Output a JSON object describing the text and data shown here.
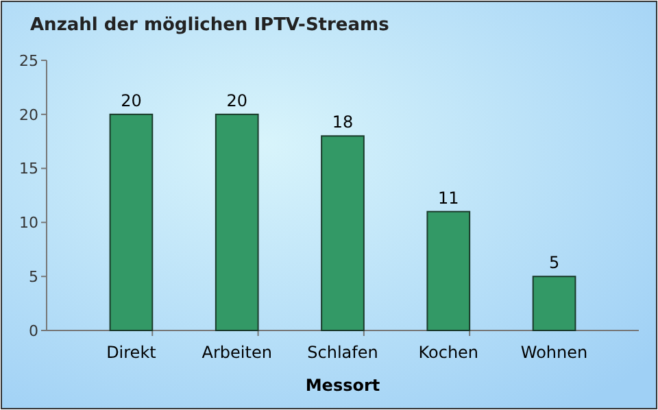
{
  "chart_data": {
    "type": "bar",
    "title": "Anzahl der möglichen IPTV-Streams",
    "xlabel": "Messort",
    "categories": [
      "Direkt",
      "Arbeiten",
      "Schlafen",
      "Kochen",
      "Wohnen"
    ],
    "values": [
      20,
      20,
      18,
      11,
      5
    ],
    "color": "#339966",
    "ylim": [
      0,
      25
    ],
    "yticks": [
      0,
      5,
      10,
      15,
      20,
      25
    ],
    "data_labels": true,
    "grid": false
  }
}
